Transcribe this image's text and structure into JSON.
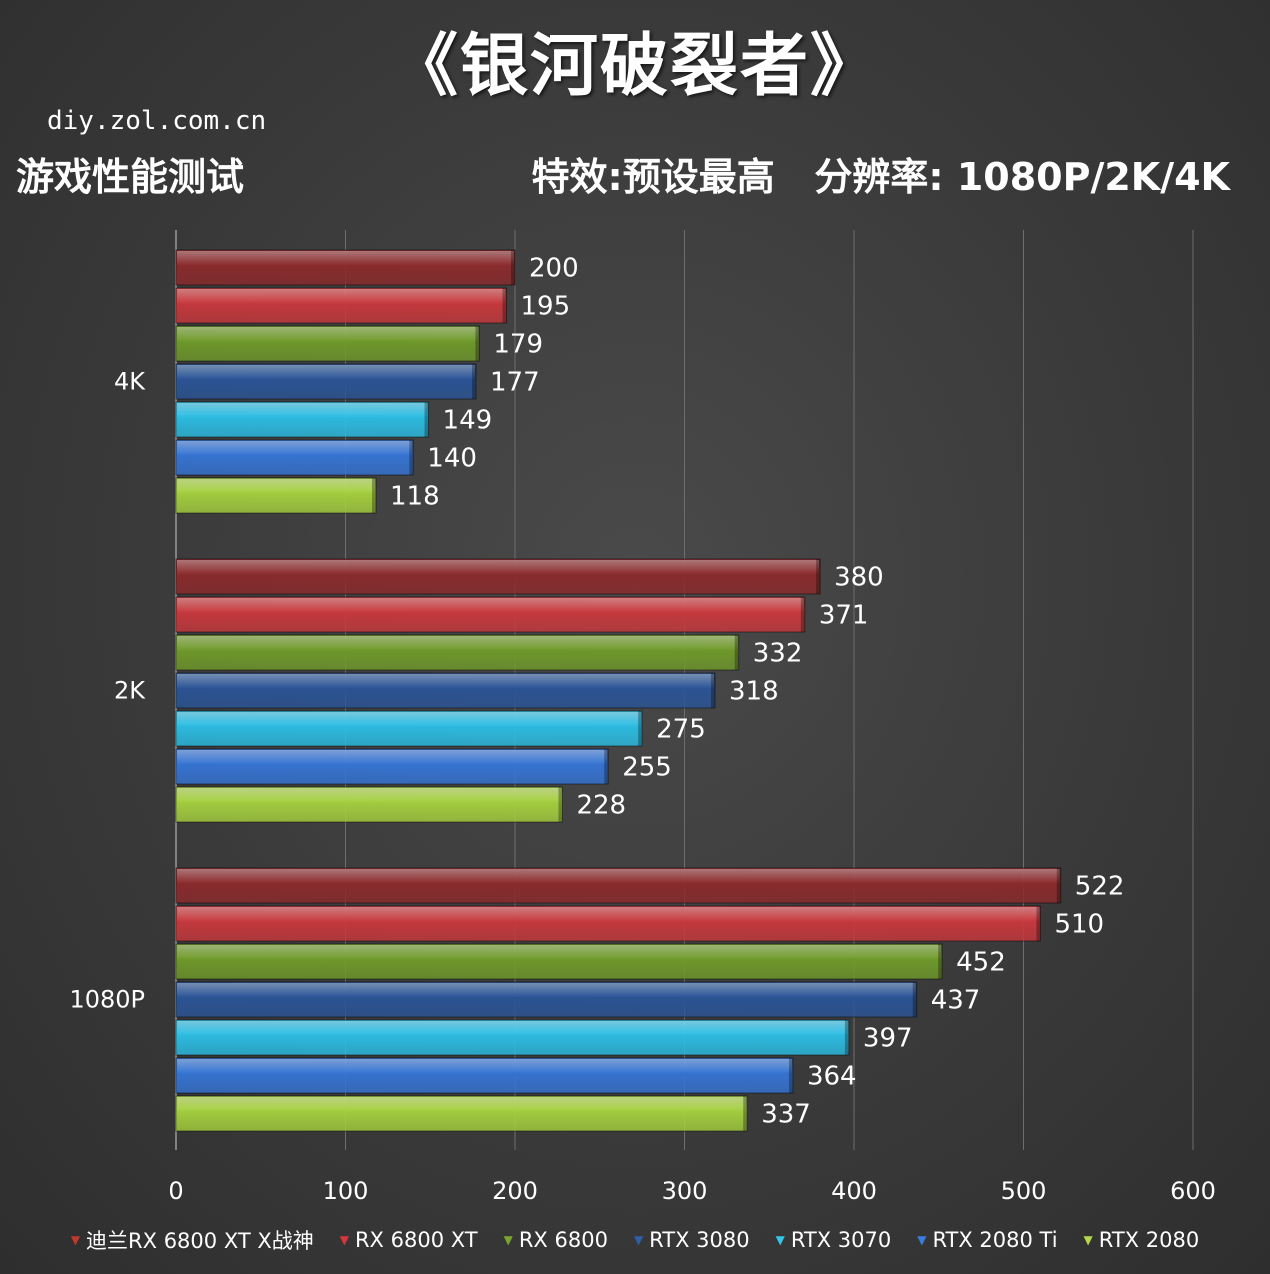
{
  "header": {
    "title": "《银河破裂者》",
    "site": "diy.zol.com.cn",
    "subtitle_left": "游戏性能测试",
    "subtitle_right": "特效:预设最高   分辨率: 1080P/2K/4K"
  },
  "chart_data": {
    "type": "bar",
    "orientation": "horizontal",
    "categories": [
      "4K",
      "2K",
      "1080P"
    ],
    "xlim": [
      0,
      600
    ],
    "xticks": [
      0,
      100,
      200,
      300,
      400,
      500,
      600
    ],
    "grid": true,
    "legend_position": "bottom",
    "series": [
      {
        "name": "迪兰RX 6800 XT X战神",
        "color": "#8b2a2c",
        "marker_color": "#c0392b",
        "values": [
          200,
          380,
          522
        ]
      },
      {
        "name": "RX 6800 XT",
        "color": "#c7383c",
        "marker_color": "#d9363b",
        "values": [
          195,
          371,
          510
        ]
      },
      {
        "name": "RX 6800",
        "color": "#6f9a2a",
        "marker_color": "#7aa62d",
        "values": [
          179,
          332,
          452
        ]
      },
      {
        "name": "RTX 3080",
        "color": "#2a5496",
        "marker_color": "#2f5fa8",
        "values": [
          177,
          318,
          437
        ]
      },
      {
        "name": "RTX 3070",
        "color": "#2bbde3",
        "marker_color": "#33c6ea",
        "values": [
          149,
          275,
          397
        ]
      },
      {
        "name": "RTX 2080 Ti",
        "color": "#3574d4",
        "marker_color": "#3a7fe0",
        "values": [
          140,
          255,
          364
        ]
      },
      {
        "name": "RTX 2080",
        "color": "#a5cf3e",
        "marker_color": "#b5d84a",
        "values": [
          118,
          228,
          337
        ]
      }
    ]
  }
}
